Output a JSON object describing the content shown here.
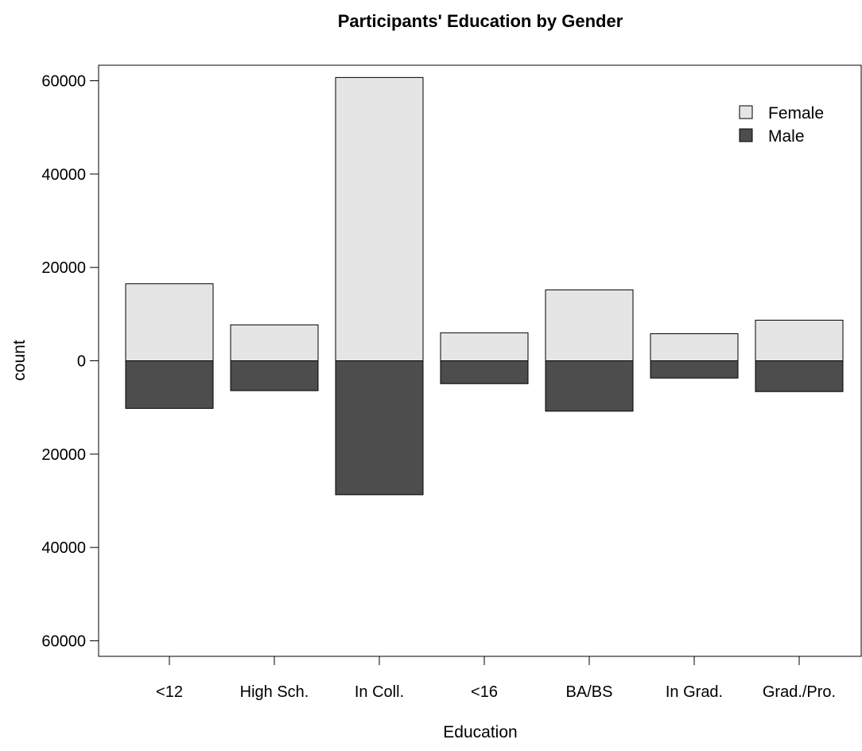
{
  "chart_data": {
    "type": "bar",
    "title": "Participants' Education by Gender",
    "xlabel": "Education",
    "ylabel": "count",
    "categories": [
      "<12",
      "High Sch.",
      "In Coll.",
      "<16",
      "BA/BS",
      "In Grad.",
      "Grad./Pro."
    ],
    "series": [
      {
        "name": "Female",
        "color": "#e5e5e5",
        "direction": "up",
        "values": [
          16500,
          7700,
          60700,
          6000,
          15200,
          5800,
          8700
        ]
      },
      {
        "name": "Male",
        "color": "#4d4d4d",
        "direction": "down",
        "values": [
          10200,
          6400,
          28700,
          4900,
          10800,
          3700,
          6600
        ]
      }
    ],
    "ylim": [
      -62000,
      63000
    ],
    "y_ticks": [
      {
        "value": 60000,
        "label": "60000"
      },
      {
        "value": 40000,
        "label": "40000"
      },
      {
        "value": 20000,
        "label": "20000"
      },
      {
        "value": 0,
        "label": "0"
      },
      {
        "value": -20000,
        "label": "20000"
      },
      {
        "value": -40000,
        "label": "40000"
      },
      {
        "value": -60000,
        "label": "60000"
      }
    ],
    "legend_position": "top-right",
    "grid": false
  }
}
